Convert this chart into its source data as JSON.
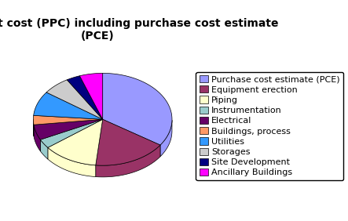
{
  "title": "Physical plant cost (PPC) including purchase cost estimate\n(PCE)",
  "labels": [
    "Purchase cost estimate (PCE)",
    "Equipment erection",
    "Piping",
    "Instrumentation",
    "Electrical",
    "Buildings, process",
    "Utilities",
    "Storages",
    "Site Development",
    "Ancillary Buildings"
  ],
  "values": [
    32,
    16,
    12,
    3,
    5,
    3,
    8,
    6,
    3,
    5
  ],
  "colors": [
    "#9999FF",
    "#993366",
    "#FFFFCC",
    "#99CCCC",
    "#660066",
    "#FF9966",
    "#3399FF",
    "#CCCCCC",
    "#000080",
    "#FF00FF"
  ],
  "edge_colors": [
    "#6666CC",
    "#660033",
    "#CCCC99",
    "#669999",
    "#330033",
    "#CC6633",
    "#0066CC",
    "#999999",
    "#000033",
    "#CC00CC"
  ],
  "startangle": 90,
  "title_fontsize": 10,
  "legend_fontsize": 8
}
